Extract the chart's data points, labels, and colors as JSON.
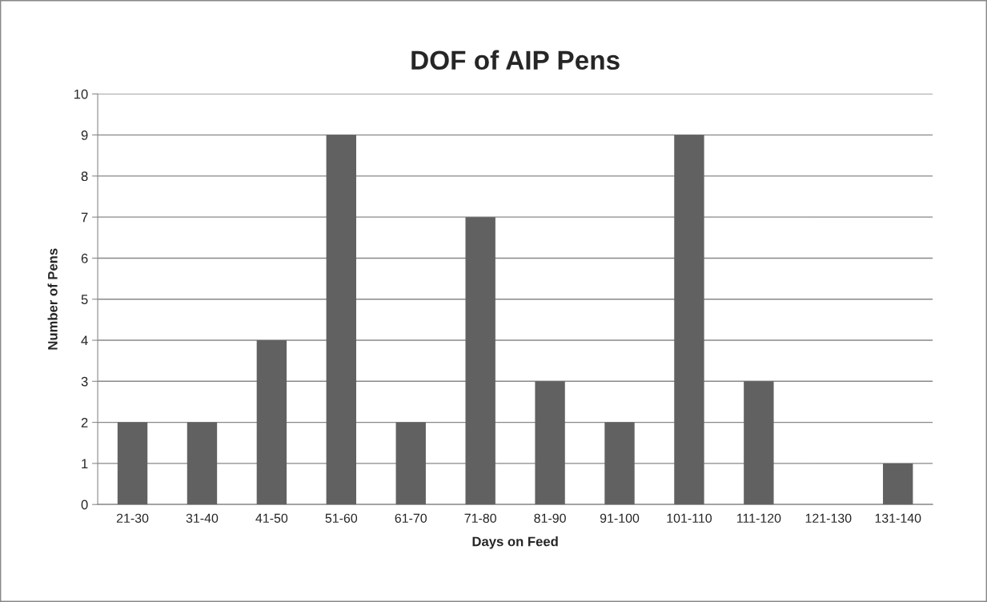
{
  "chart_data": {
    "type": "bar",
    "title": "DOF of AIP Pens",
    "xlabel": "Days on Feed",
    "ylabel": "Number of Pens",
    "categories": [
      "21-30",
      "31-40",
      "41-50",
      "51-60",
      "61-70",
      "71-80",
      "81-90",
      "91-100",
      "101-110",
      "111-120",
      "121-130",
      "131-140"
    ],
    "values": [
      2,
      2,
      4,
      9,
      2,
      7,
      3,
      2,
      9,
      3,
      0,
      1
    ],
    "color": "#616161",
    "ylim": [
      0,
      10
    ],
    "yticks": [
      0,
      1,
      2,
      3,
      4,
      5,
      6,
      7,
      8,
      9,
      10
    ],
    "grid": "y"
  }
}
